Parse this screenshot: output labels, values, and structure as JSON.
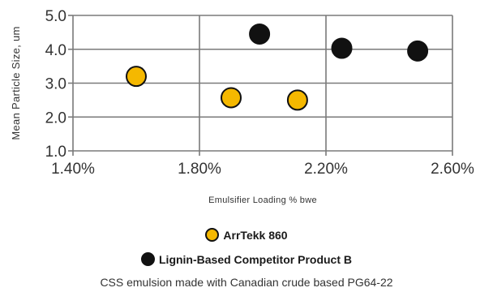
{
  "chart_data": {
    "type": "scatter",
    "title": "",
    "xlabel": "Emulsifier Loading % bwe",
    "ylabel": "Mean Particle Size, um",
    "xlim": [
      1.4,
      2.6
    ],
    "ylim": [
      1.0,
      5.0
    ],
    "x_ticks": [
      "1.40%",
      "1.80%",
      "2.20%",
      "2.60%"
    ],
    "y_ticks": [
      "1.0",
      "2.0",
      "3.0",
      "4.0",
      "5.0"
    ],
    "grid": true,
    "legend_position": "bottom-center",
    "series": [
      {
        "name": "ArrTekk 860",
        "color": "#F5B800",
        "points": [
          {
            "x": 1.6,
            "y": 3.2
          },
          {
            "x": 1.9,
            "y": 2.57
          },
          {
            "x": 2.11,
            "y": 2.5
          }
        ]
      },
      {
        "name": "Lignin-Based Competitor Product B",
        "color": "#111111",
        "points": [
          {
            "x": 1.99,
            "y": 4.45
          },
          {
            "x": 2.25,
            "y": 4.03
          },
          {
            "x": 2.49,
            "y": 3.95
          }
        ]
      }
    ]
  },
  "footnote": "CSS emulsion made with Canadian crude based PG64-22"
}
